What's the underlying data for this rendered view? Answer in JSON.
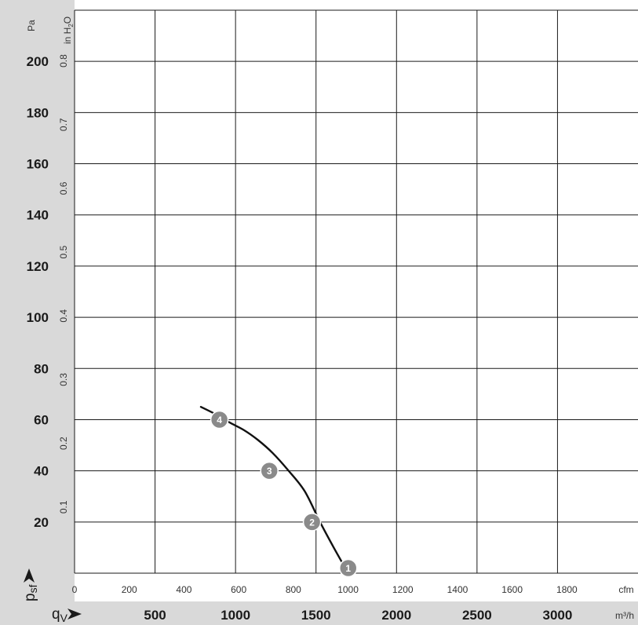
{
  "chart_data": {
    "type": "line",
    "title": "",
    "axes": {
      "y_primary": {
        "unit": "Pa",
        "symbol_main": "p",
        "symbol_sub": "sf",
        "range": [
          0,
          220
        ],
        "ticks": [
          20,
          40,
          60,
          80,
          100,
          120,
          140,
          160,
          180,
          200
        ]
      },
      "y_secondary": {
        "unit_prefix": "in H",
        "unit_sub": "2",
        "unit_suffix": "O",
        "ticks": [
          "0.1",
          "0.2",
          "0.3",
          "0.4",
          "0.5",
          "0.6",
          "0.7",
          "0.8"
        ]
      },
      "x_primary": {
        "unit": "m³/h",
        "symbol_main": "q",
        "symbol_sub": "V",
        "range": [
          0,
          3500
        ],
        "ticks": [
          500,
          1000,
          1500,
          2000,
          2500,
          3000
        ]
      },
      "x_secondary": {
        "unit": "cfm",
        "ticks": [
          0,
          200,
          400,
          600,
          800,
          1000,
          1200,
          1400,
          1600,
          1800
        ]
      }
    },
    "grid": true,
    "series": [
      {
        "x": [
          785,
          880,
          960,
          1050,
          1140,
          1230,
          1330,
          1430,
          1525,
          1610,
          1700
        ],
        "y": [
          65,
          62,
          59,
          56,
          52,
          47,
          40,
          32,
          20,
          10,
          0
        ]
      }
    ],
    "operating_points": [
      {
        "label": "1",
        "x": 1700,
        "y": 2
      },
      {
        "label": "2",
        "x": 1475,
        "y": 20
      },
      {
        "label": "3",
        "x": 1210,
        "y": 40
      },
      {
        "label": "4",
        "x": 900,
        "y": 60
      }
    ]
  }
}
